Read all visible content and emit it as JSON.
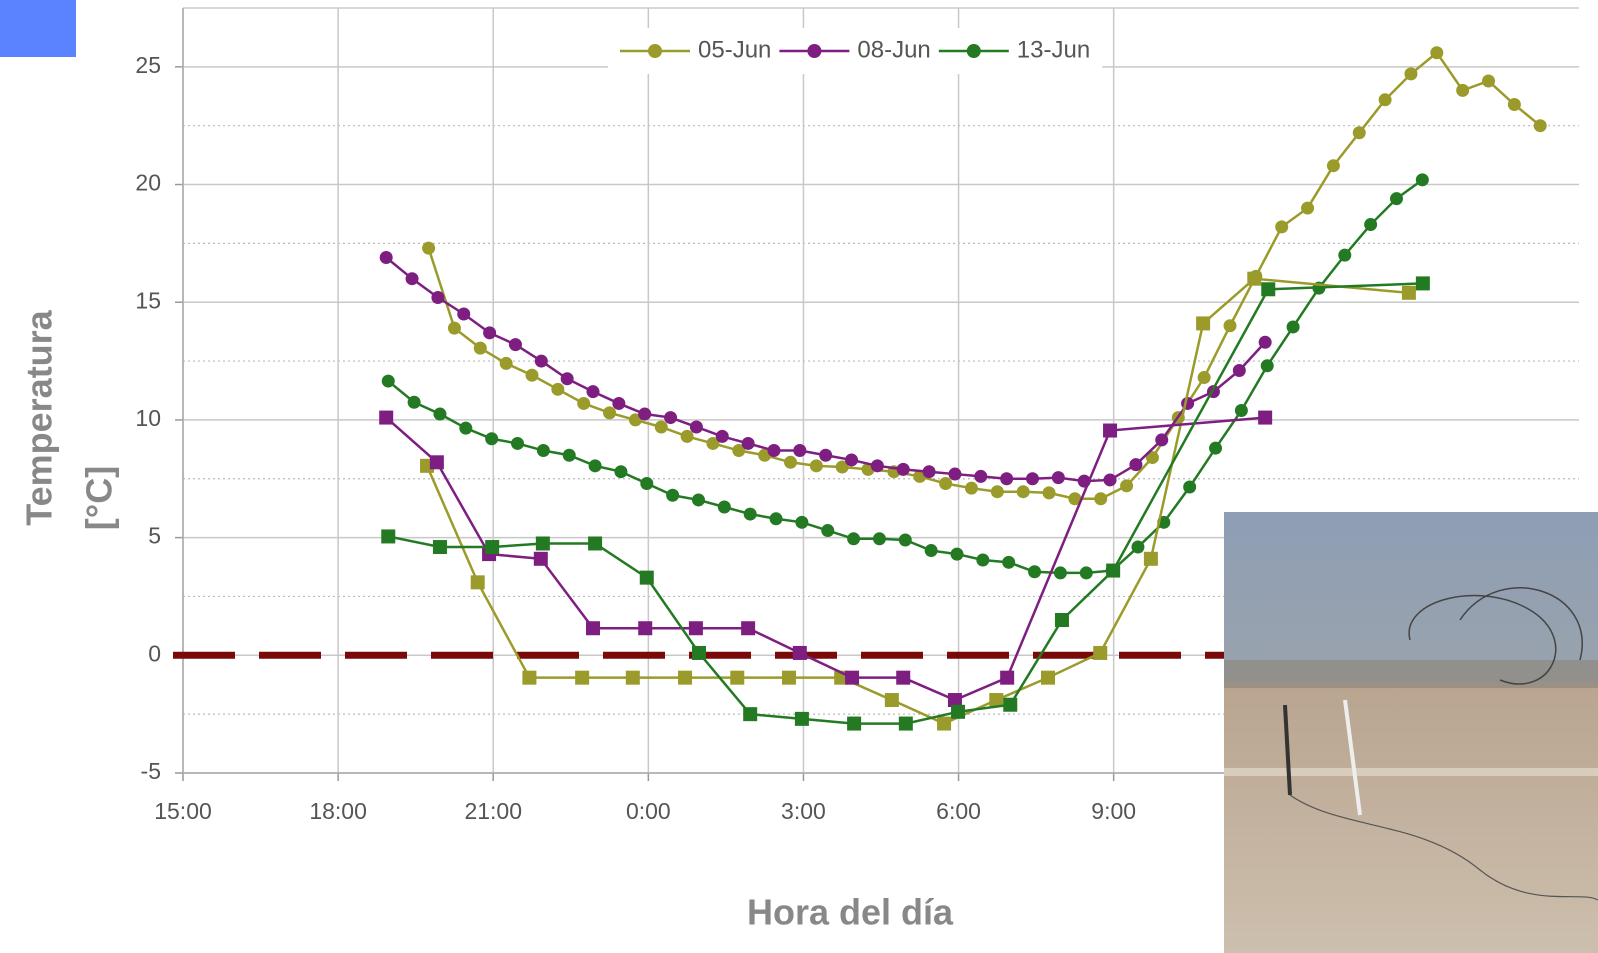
{
  "chart_data": {
    "type": "line",
    "xlabel": "Hora del día",
    "ylabel": [
      "Temperatura",
      "[°C]"
    ],
    "xlim": [
      0,
      27
    ],
    "ylim": [
      -5,
      27.5
    ],
    "xticks": [
      {
        "value": 0,
        "label": "15:00"
      },
      {
        "value": 3,
        "label": "18:00"
      },
      {
        "value": 6,
        "label": "21:00"
      },
      {
        "value": 9,
        "label": "0:00"
      },
      {
        "value": 12,
        "label": "3:00"
      },
      {
        "value": 15,
        "label": "6:00"
      },
      {
        "value": 18,
        "label": "9:00"
      }
    ],
    "yticks": [
      -5,
      0,
      5,
      10,
      15,
      20,
      25
    ],
    "grid": true,
    "legend": "top",
    "reference_line": {
      "value": 0,
      "color": "#7a0a0a"
    },
    "series": [
      {
        "name": "05-Jun",
        "color": "#9b9b2b",
        "marker": "circle",
        "x": [
          4.75,
          5.25,
          5.75,
          6.25,
          6.75,
          7.25,
          7.75,
          8.25,
          8.75,
          9.25,
          9.75,
          10.25,
          10.75,
          11.25,
          11.75,
          12.25,
          12.75,
          13.25,
          13.75,
          14.25,
          14.75,
          15.25,
          15.75,
          16.25,
          16.75,
          17.25,
          17.75,
          18.25,
          18.75,
          19.25,
          19.75,
          20.25,
          20.75,
          21.25,
          21.75,
          22.25,
          22.75,
          23.25,
          23.75,
          24.25,
          24.75,
          25.25,
          25.75,
          26.25
        ],
        "values": [
          17.3,
          13.9,
          13.05,
          12.4,
          11.9,
          11.3,
          10.7,
          10.3,
          10.0,
          9.7,
          9.3,
          9.0,
          8.7,
          8.5,
          8.2,
          8.05,
          8.0,
          7.9,
          7.8,
          7.6,
          7.3,
          7.1,
          6.95,
          6.95,
          6.9,
          6.65,
          6.65,
          7.2,
          8.4,
          10.1,
          11.8,
          14.0,
          16.1,
          18.2,
          19.0,
          20.8,
          22.2,
          23.6,
          24.7,
          25.6,
          24.0,
          24.4,
          23.4,
          22.5
        ]
      },
      {
        "name": "08-Jun",
        "color": "#7d1e80",
        "marker": "circle",
        "x": [
          3.93,
          4.43,
          4.93,
          5.43,
          5.93,
          6.43,
          6.93,
          7.43,
          7.93,
          8.43,
          8.93,
          9.43,
          9.93,
          10.43,
          10.93,
          11.43,
          11.93,
          12.43,
          12.93,
          13.43,
          13.93,
          14.43,
          14.93,
          15.43,
          15.93,
          16.43,
          16.93,
          17.43,
          17.93,
          18.43,
          18.93,
          19.43,
          19.93,
          20.43,
          20.93
        ],
        "values": [
          16.9,
          16.0,
          15.2,
          14.5,
          13.7,
          13.2,
          12.5,
          11.75,
          11.2,
          10.7,
          10.25,
          10.1,
          9.7,
          9.3,
          9.0,
          8.7,
          8.7,
          8.5,
          8.3,
          8.05,
          7.9,
          7.8,
          7.7,
          7.6,
          7.5,
          7.5,
          7.55,
          7.4,
          7.45,
          8.1,
          9.15,
          10.7,
          11.2,
          12.1,
          13.3
        ]
      },
      {
        "name": "13-Jun",
        "color": "#237a23",
        "marker": "circle",
        "x": [
          3.97,
          4.47,
          4.97,
          5.47,
          5.97,
          6.47,
          6.97,
          7.47,
          7.97,
          8.47,
          8.97,
          9.47,
          9.97,
          10.47,
          10.97,
          11.47,
          11.97,
          12.47,
          12.97,
          13.47,
          13.97,
          14.47,
          14.97,
          15.47,
          15.97,
          16.47,
          16.97,
          17.47,
          17.97,
          18.47,
          18.97,
          19.47,
          19.97,
          20.47,
          20.97,
          21.47,
          21.97,
          22.47,
          22.97,
          23.47,
          23.97
        ],
        "values": [
          11.65,
          10.75,
          10.25,
          9.65,
          9.2,
          9.0,
          8.7,
          8.5,
          8.05,
          7.8,
          7.3,
          6.8,
          6.6,
          6.3,
          6.0,
          5.8,
          5.65,
          5.3,
          4.95,
          4.95,
          4.9,
          4.45,
          4.3,
          4.05,
          3.95,
          3.55,
          3.5,
          3.5,
          3.6,
          4.6,
          5.65,
          7.15,
          8.8,
          10.4,
          12.3,
          13.95,
          15.6,
          17.0,
          18.3,
          19.4,
          20.2
        ]
      },
      {
        "color": "#9b9b2b",
        "marker": "square",
        "x": [
          4.72,
          5.7,
          6.7,
          7.72,
          8.7,
          9.71,
          10.72,
          11.72,
          12.73,
          13.71,
          14.72,
          15.73,
          16.73,
          17.74,
          18.72,
          19.73,
          20.72,
          23.71
        ],
        "values": [
          8.05,
          3.1,
          -0.95,
          -0.95,
          -0.95,
          -0.95,
          -0.95,
          -0.95,
          -0.95,
          -1.9,
          -2.9,
          -1.9,
          -0.95,
          0.1,
          4.1,
          14.1,
          16.0,
          15.4
        ]
      },
      {
        "color": "#7d1e80",
        "marker": "square",
        "x": [
          3.93,
          4.91,
          5.92,
          6.92,
          7.93,
          8.94,
          9.92,
          10.93,
          11.93,
          12.94,
          13.93,
          14.93,
          15.94,
          17.93,
          20.93
        ],
        "values": [
          10.1,
          8.2,
          4.3,
          4.1,
          1.15,
          1.15,
          1.15,
          1.15,
          0.1,
          -0.95,
          -0.95,
          -1.9,
          -0.95,
          9.55,
          10.1
        ]
      },
      {
        "color": "#237a23",
        "marker": "square",
        "x": [
          3.97,
          4.97,
          5.98,
          6.96,
          7.97,
          8.97,
          9.98,
          10.97,
          11.97,
          12.98,
          13.98,
          14.99,
          16.0,
          17.0,
          17.99,
          20.99,
          23.98
        ],
        "values": [
          5.05,
          4.6,
          4.6,
          4.75,
          4.75,
          3.3,
          0.1,
          -2.5,
          -2.7,
          -2.9,
          -2.9,
          -2.4,
          -2.1,
          1.5,
          3.6,
          15.55,
          15.8
        ]
      }
    ]
  }
}
